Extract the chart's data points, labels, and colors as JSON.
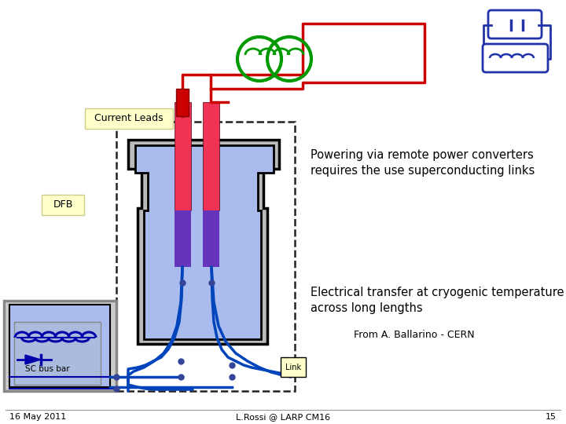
{
  "bg_color": "#ffffff",
  "title_left": "16 May 2011",
  "title_center": "L.Rossi @ LARP CM16",
  "page_num": "15",
  "label_current_leads": "Current Leads",
  "label_dfb": "DFB",
  "label_sc_bus_bar": "SC bus bar",
  "label_link": "Link",
  "text_powering": "Powering via remote power converters\nrequires the use superconducting links",
  "text_electrical": "Electrical transfer at cryogenic temperature\nacross long lengths",
  "text_from": "From A. Ballarino - CERN",
  "red_line_color": "#cc0000",
  "green_coil_color": "#009900",
  "blue_color": "#0044bb",
  "blue_fill": "#aabbee",
  "blue_fill2": "#99aadd",
  "gray_fill": "#bbbbbb",
  "dark_blue": "#0000aa",
  "pink_red": "#ee3355",
  "purple_blue": "#6633bb",
  "dashed_box_color": "#333333",
  "symbol_color": "#2233aa"
}
